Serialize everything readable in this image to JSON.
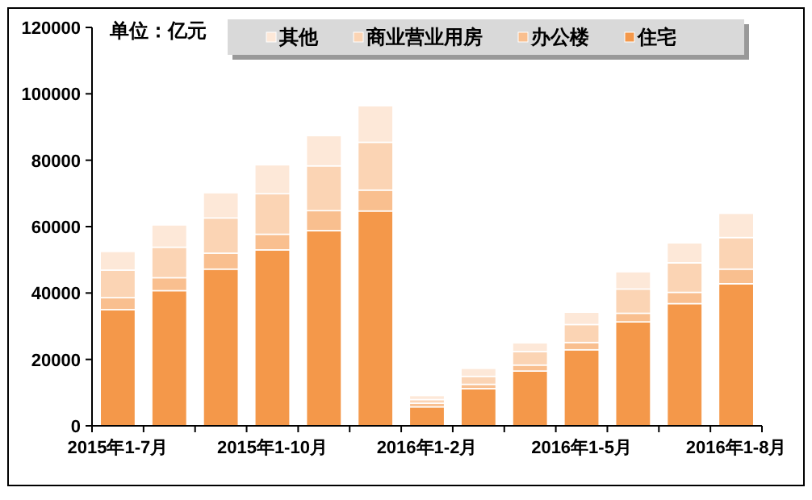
{
  "chart_data": {
    "type": "bar",
    "stacked": true,
    "categories": [
      "2015年1-7月",
      null,
      null,
      "2015年1-10月",
      null,
      null,
      "2016年1-2月",
      null,
      null,
      "2016年1-5月",
      null,
      null,
      "2016年1-8月"
    ],
    "series": [
      {
        "name": "住宅",
        "color": "#f4984a",
        "values": [
          35000,
          40700,
          47200,
          53000,
          58800,
          64700,
          5700,
          11200,
          16500,
          22900,
          31300,
          36800,
          42800
        ]
      },
      {
        "name": "办公楼",
        "color": "#f9bf8f",
        "values": [
          3600,
          3900,
          4800,
          4700,
          6000,
          6300,
          1100,
          1300,
          1800,
          2200,
          2600,
          3400,
          4400
        ]
      },
      {
        "name": "商业营业用房",
        "color": "#fbd4b4",
        "values": [
          8300,
          9200,
          10600,
          12200,
          13500,
          14400,
          1100,
          2400,
          4100,
          5400,
          7300,
          8900,
          9500
        ]
      },
      {
        "name": "其他",
        "color": "#fde8d8",
        "values": [
          5600,
          6700,
          7600,
          8700,
          9100,
          11000,
          1200,
          2400,
          2600,
          3700,
          5200,
          6000,
          7300
        ]
      }
    ],
    "ylim": [
      0,
      120000
    ],
    "yticks": [
      0,
      20000,
      40000,
      60000,
      80000,
      100000,
      120000
    ],
    "annotations": [
      "单位：亿元"
    ],
    "legend": "top",
    "grid": false
  }
}
